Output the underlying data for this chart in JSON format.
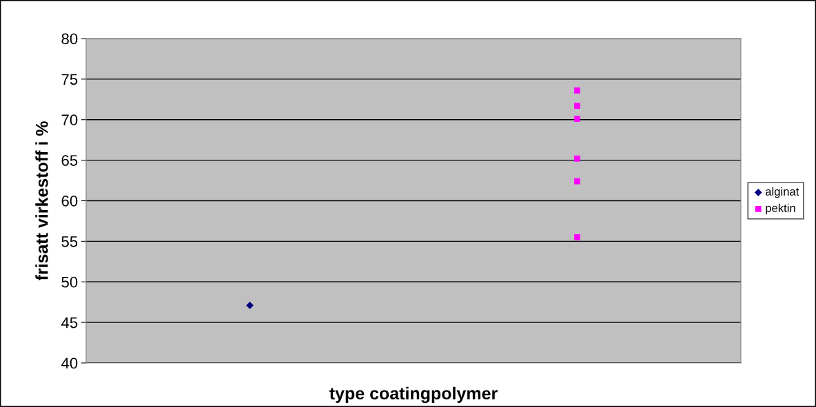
{
  "chart_data": {
    "type": "scatter",
    "xlabel": "type coatingpolymer",
    "ylabel": "frisatt virkestoff i %",
    "categories": [
      null,
      null
    ],
    "ylim": [
      40,
      80
    ],
    "yticks": [
      40,
      45,
      50,
      55,
      60,
      65,
      70,
      75,
      80
    ],
    "grid": "y",
    "legend": "right",
    "series": [
      {
        "name": "alginat",
        "color": "#000080",
        "marker": "diamond",
        "values": [
          47.1,
          null
        ]
      },
      {
        "name": "pektin",
        "color": "#ff00ff",
        "marker": "square",
        "values": [
          null,
          73.6
        ]
      },
      {
        "color": "#ff00ff",
        "marker": "square",
        "values": [
          null,
          71.7
        ]
      },
      {
        "color": "#ff00ff",
        "marker": "square",
        "values": [
          null,
          70.1
        ]
      },
      {
        "color": "#ff00ff",
        "marker": "square",
        "values": [
          null,
          65.2
        ]
      },
      {
        "color": "#ff00ff",
        "marker": "square",
        "values": [
          null,
          62.4
        ]
      },
      {
        "color": "#ff00ff",
        "marker": "square",
        "values": [
          null,
          55.5
        ]
      }
    ]
  }
}
